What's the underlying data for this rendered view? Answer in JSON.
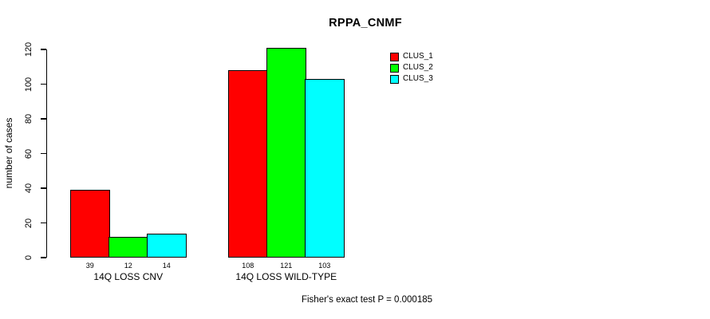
{
  "chart_data": {
    "type": "bar",
    "title": "RPPA_CNMF",
    "xlabel": "",
    "ylabel": "number of cases",
    "categories": [
      "14Q LOSS CNV",
      "14Q LOSS WILD-TYPE"
    ],
    "series": [
      {
        "name": "CLUS_1",
        "color": "#ff0000",
        "values": [
          39,
          108
        ]
      },
      {
        "name": "CLUS_2",
        "color": "#00ff00",
        "values": [
          12,
          121
        ]
      },
      {
        "name": "CLUS_3",
        "color": "#00ffff",
        "values": [
          14,
          103
        ]
      }
    ],
    "bar_value_labels": [
      [
        "39",
        "12",
        "14"
      ],
      [
        "108",
        "121",
        "103"
      ]
    ],
    "ylim": [
      0,
      120
    ],
    "yticks": [
      0,
      20,
      40,
      60,
      80,
      100,
      120
    ],
    "grid": false,
    "legend_position": "top-right",
    "annotation": "Fisher's exact test P = 0.000185"
  }
}
